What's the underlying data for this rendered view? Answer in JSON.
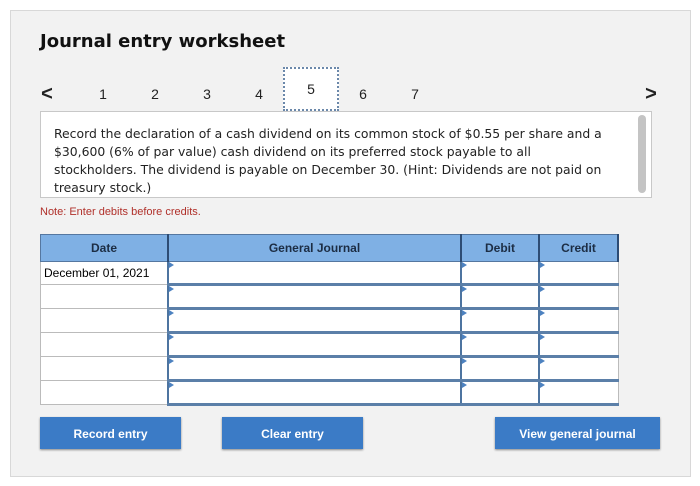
{
  "title": "Journal entry worksheet",
  "nav": {
    "prev": "<",
    "next": ">",
    "pages": [
      "1",
      "2",
      "3",
      "4",
      "5",
      "6",
      "7"
    ],
    "current": "5"
  },
  "question": "Record the declaration of a cash dividend on its common stock of $0.55 per share and a $30,600 (6% of par value) cash dividend on its preferred stock payable to all stockholders. The dividend is payable on December 30. (Hint: Dividends are not paid on treasury stock.)",
  "note": "Note: Enter debits before credits.",
  "table": {
    "headers": [
      "Date",
      "General Journal",
      "Debit",
      "Credit"
    ],
    "rows": [
      {
        "date": "December 01, 2021",
        "account": "",
        "debit": "",
        "credit": ""
      },
      {
        "date": "",
        "account": "",
        "debit": "",
        "credit": ""
      },
      {
        "date": "",
        "account": "",
        "debit": "",
        "credit": ""
      },
      {
        "date": "",
        "account": "",
        "debit": "",
        "credit": ""
      },
      {
        "date": "",
        "account": "",
        "debit": "",
        "credit": ""
      },
      {
        "date": "",
        "account": "",
        "debit": "",
        "credit": ""
      }
    ]
  },
  "buttons": {
    "record": "Record entry",
    "clear": "Clear entry",
    "view": "View general journal"
  },
  "colors": {
    "accent": "#3b7bc6",
    "header": "#7fb0e4",
    "note": "#b0302a"
  }
}
